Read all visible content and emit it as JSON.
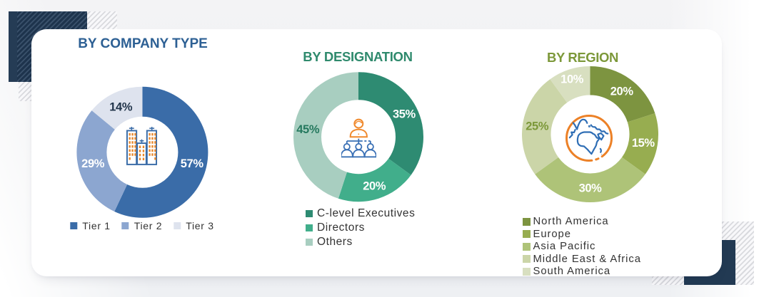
{
  "page": {
    "background_color": "#F0F1F3",
    "card_color": "#FFFFFF",
    "accent_navy": "#223A53"
  },
  "decorations": {
    "top_left": [
      "hatch-pattern-square",
      "navy-hatch-square",
      "navy-solid-bar"
    ],
    "bottom_right": [
      "hatch-pattern-square",
      "navy-solid-corner"
    ]
  },
  "chart_data": [
    {
      "type": "pie",
      "variant": "donut",
      "title": "BY COMPANY TYPE",
      "title_color": "#2D6094",
      "center_icon": "buildings-icon",
      "legend_position": "bottom-horizontal",
      "value_suffix": "%",
      "categories": [
        "Tier 1",
        "Tier 2",
        "Tier 3"
      ],
      "values": [
        57,
        29,
        14
      ],
      "slices": [
        {
          "label": "Tier 1",
          "value": 57,
          "color": "#3A6CA8",
          "label_color": "#FFFFFF"
        },
        {
          "label": "Tier 2",
          "value": 29,
          "color": "#8CA6D0",
          "label_color": "#FFFFFF"
        },
        {
          "label": "Tier 3",
          "value": 14,
          "color": "#DEE3EE",
          "label_color": "#22354B"
        }
      ]
    },
    {
      "type": "pie",
      "variant": "donut",
      "title": "BY DESIGNATION",
      "title_color": "#2F8A6D",
      "center_icon": "org-chart-icon",
      "legend_position": "bottom-vertical",
      "value_suffix": "%",
      "categories": [
        "C-level Executives",
        "Directors",
        "Others"
      ],
      "values": [
        35,
        20,
        45
      ],
      "slices": [
        {
          "label": "C-level Executives",
          "value": 35,
          "color": "#2E8B72",
          "label_color": "#FFFFFF"
        },
        {
          "label": "Directors",
          "value": 20,
          "color": "#41AE8B",
          "label_color": "#FFFFFF"
        },
        {
          "label": "Others",
          "value": 45,
          "color": "#A8CEC0",
          "label_color": "#26795F"
        }
      ]
    },
    {
      "type": "pie",
      "variant": "donut",
      "title": "BY REGION",
      "title_color": "#7C9839",
      "center_icon": "globe-icon",
      "legend_position": "bottom-vertical",
      "value_suffix": "%",
      "categories": [
        "North America",
        "Europe",
        "Asia Pacific",
        "Middle East & Africa",
        "South America"
      ],
      "values": [
        20,
        15,
        30,
        25,
        10
      ],
      "slices": [
        {
          "label": "North America",
          "value": 20,
          "color": "#7D9440",
          "label_color": "#FFFFFF"
        },
        {
          "label": "Europe",
          "value": 15,
          "color": "#97AD50",
          "label_color": "#FFFFFF"
        },
        {
          "label": "Asia Pacific",
          "value": 30,
          "color": "#AEC378",
          "label_color": "#FFFFFF"
        },
        {
          "label": "Middle East & Africa",
          "value": 25,
          "color": "#CBD5A8",
          "label_color": "#7C9839"
        },
        {
          "label": "South America",
          "value": 10,
          "color": "#D8DFC0",
          "label_color": "#FFFFFF",
          "label_radius_factor": 0.86
        }
      ]
    }
  ]
}
